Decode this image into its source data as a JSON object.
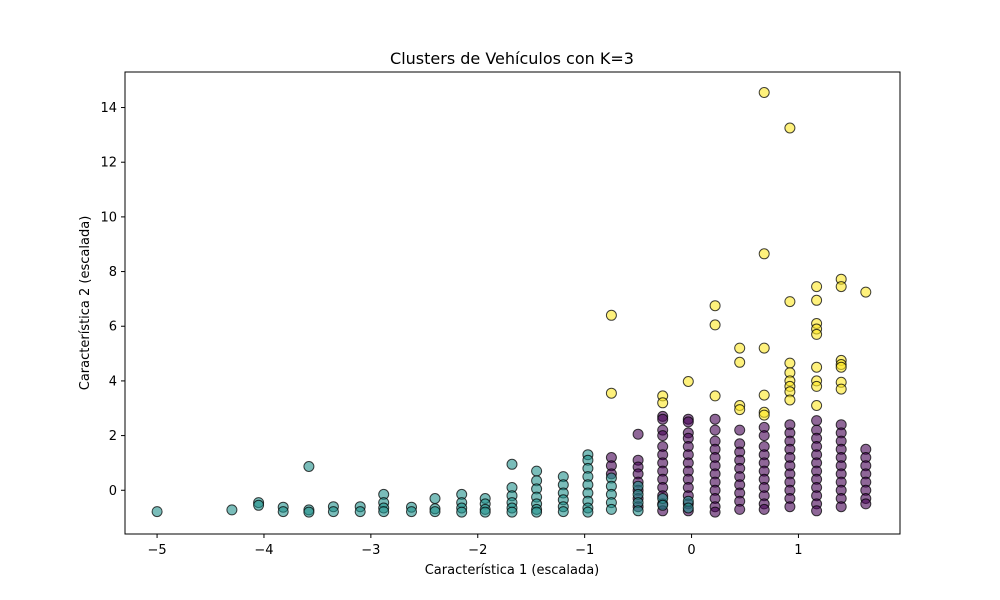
{
  "chart_data": {
    "type": "scatter",
    "title": "Clusters de Vehículos con K=3",
    "xlabel": "Característica 1 (escalada)",
    "ylabel": "Característica 2 (escalada)",
    "xlim": [
      -5.3,
      1.95
    ],
    "ylim": [
      -1.6,
      15.3
    ],
    "xticks": [
      -5,
      -4,
      -3,
      -2,
      -1,
      0,
      1
    ],
    "yticks": [
      0,
      2,
      4,
      6,
      8,
      10,
      12,
      14
    ],
    "xtick_labels": [
      "−5",
      "−4",
      "−3",
      "−2",
      "−1",
      "0",
      "1"
    ],
    "ytick_labels": [
      "0",
      "2",
      "4",
      "6",
      "8",
      "10",
      "12",
      "14"
    ],
    "grid": false,
    "legend": "none",
    "marker_edge_color": "#000000",
    "marker_alpha": 0.6,
    "series": [
      {
        "color": "#440154",
        "points": [
          [
            -0.75,
            1.2
          ],
          [
            -0.75,
            0.9
          ],
          [
            -0.75,
            0.6
          ],
          [
            -0.5,
            2.05
          ],
          [
            -0.5,
            1.1
          ],
          [
            -0.5,
            0.85
          ],
          [
            -0.5,
            0.6
          ],
          [
            -0.5,
            0.3
          ],
          [
            -0.5,
            0.0
          ],
          [
            -0.5,
            -0.3
          ],
          [
            -0.5,
            -0.6
          ],
          [
            -0.27,
            2.7
          ],
          [
            -0.27,
            2.6
          ],
          [
            -0.27,
            2.2
          ],
          [
            -0.27,
            2.0
          ],
          [
            -0.27,
            1.6
          ],
          [
            -0.27,
            1.3
          ],
          [
            -0.27,
            1.0
          ],
          [
            -0.27,
            0.7
          ],
          [
            -0.27,
            0.4
          ],
          [
            -0.27,
            0.1
          ],
          [
            -0.27,
            -0.2
          ],
          [
            -0.27,
            -0.5
          ],
          [
            -0.27,
            -0.75
          ],
          [
            -0.03,
            2.6
          ],
          [
            -0.03,
            2.5
          ],
          [
            -0.03,
            2.1
          ],
          [
            -0.03,
            1.9
          ],
          [
            -0.03,
            1.6
          ],
          [
            -0.03,
            1.3
          ],
          [
            -0.03,
            1.0
          ],
          [
            -0.03,
            0.7
          ],
          [
            -0.03,
            0.4
          ],
          [
            -0.03,
            0.1
          ],
          [
            -0.03,
            -0.2
          ],
          [
            -0.03,
            -0.5
          ],
          [
            -0.03,
            -0.75
          ],
          [
            0.22,
            2.6
          ],
          [
            0.22,
            2.2
          ],
          [
            0.22,
            1.8
          ],
          [
            0.22,
            1.5
          ],
          [
            0.22,
            1.2
          ],
          [
            0.22,
            0.9
          ],
          [
            0.22,
            0.6
          ],
          [
            0.22,
            0.3
          ],
          [
            0.22,
            0.0
          ],
          [
            0.22,
            -0.3
          ],
          [
            0.22,
            -0.6
          ],
          [
            0.22,
            -0.8
          ],
          [
            0.45,
            2.2
          ],
          [
            0.45,
            1.7
          ],
          [
            0.45,
            1.4
          ],
          [
            0.45,
            1.1
          ],
          [
            0.45,
            0.8
          ],
          [
            0.45,
            0.5
          ],
          [
            0.45,
            0.2
          ],
          [
            0.45,
            -0.1
          ],
          [
            0.45,
            -0.4
          ],
          [
            0.45,
            -0.7
          ],
          [
            0.68,
            2.3
          ],
          [
            0.68,
            2.0
          ],
          [
            0.68,
            1.6
          ],
          [
            0.68,
            1.3
          ],
          [
            0.68,
            1.0
          ],
          [
            0.68,
            0.7
          ],
          [
            0.68,
            0.4
          ],
          [
            0.68,
            0.1
          ],
          [
            0.68,
            -0.2
          ],
          [
            0.68,
            -0.5
          ],
          [
            0.68,
            -0.7
          ],
          [
            0.92,
            2.4
          ],
          [
            0.92,
            2.1
          ],
          [
            0.92,
            1.8
          ],
          [
            0.92,
            1.5
          ],
          [
            0.92,
            1.2
          ],
          [
            0.92,
            0.9
          ],
          [
            0.92,
            0.6
          ],
          [
            0.92,
            0.3
          ],
          [
            0.92,
            0.0
          ],
          [
            0.92,
            -0.3
          ],
          [
            0.92,
            -0.6
          ],
          [
            1.17,
            2.55
          ],
          [
            1.17,
            2.2
          ],
          [
            1.17,
            1.9
          ],
          [
            1.17,
            1.6
          ],
          [
            1.17,
            1.3
          ],
          [
            1.17,
            1.0
          ],
          [
            1.17,
            0.7
          ],
          [
            1.17,
            0.4
          ],
          [
            1.17,
            0.1
          ],
          [
            1.17,
            -0.2
          ],
          [
            1.17,
            -0.5
          ],
          [
            1.17,
            -0.75
          ],
          [
            1.4,
            2.4
          ],
          [
            1.4,
            2.1
          ],
          [
            1.4,
            1.8
          ],
          [
            1.4,
            1.5
          ],
          [
            1.4,
            1.2
          ],
          [
            1.4,
            0.9
          ],
          [
            1.4,
            0.6
          ],
          [
            1.4,
            0.3
          ],
          [
            1.4,
            0.0
          ],
          [
            1.4,
            -0.3
          ],
          [
            1.4,
            -0.6
          ],
          [
            1.63,
            1.5
          ],
          [
            1.63,
            1.2
          ],
          [
            1.63,
            0.9
          ],
          [
            1.63,
            0.6
          ],
          [
            1.63,
            0.3
          ],
          [
            1.63,
            0.0
          ],
          [
            1.63,
            -0.3
          ],
          [
            1.63,
            -0.5
          ]
        ]
      },
      {
        "color": "#21918c",
        "points": [
          [
            -5.0,
            -0.78
          ],
          [
            -4.3,
            -0.72
          ],
          [
            -4.05,
            -0.45
          ],
          [
            -4.05,
            -0.55
          ],
          [
            -3.82,
            -0.62
          ],
          [
            -3.82,
            -0.78
          ],
          [
            -3.58,
            0.87
          ],
          [
            -3.58,
            -0.72
          ],
          [
            -3.58,
            -0.8
          ],
          [
            -3.35,
            -0.6
          ],
          [
            -3.35,
            -0.78
          ],
          [
            -3.1,
            -0.6
          ],
          [
            -3.1,
            -0.78
          ],
          [
            -2.88,
            -0.15
          ],
          [
            -2.88,
            -0.45
          ],
          [
            -2.88,
            -0.65
          ],
          [
            -2.88,
            -0.78
          ],
          [
            -2.62,
            -0.62
          ],
          [
            -2.62,
            -0.78
          ],
          [
            -2.4,
            -0.3
          ],
          [
            -2.4,
            -0.68
          ],
          [
            -2.4,
            -0.78
          ],
          [
            -2.15,
            -0.15
          ],
          [
            -2.15,
            -0.45
          ],
          [
            -2.15,
            -0.65
          ],
          [
            -2.15,
            -0.8
          ],
          [
            -1.93,
            -0.3
          ],
          [
            -1.93,
            -0.5
          ],
          [
            -1.93,
            -0.7
          ],
          [
            -1.93,
            -0.8
          ],
          [
            -1.68,
            0.95
          ],
          [
            -1.68,
            0.1
          ],
          [
            -1.68,
            -0.2
          ],
          [
            -1.68,
            -0.45
          ],
          [
            -1.68,
            -0.65
          ],
          [
            -1.68,
            -0.8
          ],
          [
            -1.45,
            0.7
          ],
          [
            -1.45,
            0.35
          ],
          [
            -1.45,
            0.05
          ],
          [
            -1.45,
            -0.25
          ],
          [
            -1.45,
            -0.5
          ],
          [
            -1.45,
            -0.7
          ],
          [
            -1.45,
            -0.8
          ],
          [
            -1.2,
            0.5
          ],
          [
            -1.2,
            0.2
          ],
          [
            -1.2,
            -0.1
          ],
          [
            -1.2,
            -0.35
          ],
          [
            -1.2,
            -0.6
          ],
          [
            -1.2,
            -0.78
          ],
          [
            -0.97,
            1.3
          ],
          [
            -0.97,
            1.1
          ],
          [
            -0.97,
            0.8
          ],
          [
            -0.97,
            0.5
          ],
          [
            -0.97,
            0.2
          ],
          [
            -0.97,
            -0.1
          ],
          [
            -0.97,
            -0.4
          ],
          [
            -0.97,
            -0.65
          ],
          [
            -0.97,
            -0.8
          ],
          [
            -0.75,
            0.45
          ],
          [
            -0.75,
            0.15
          ],
          [
            -0.75,
            -0.15
          ],
          [
            -0.75,
            -0.45
          ],
          [
            -0.75,
            -0.7
          ],
          [
            -0.5,
            0.15
          ],
          [
            -0.5,
            -0.15
          ],
          [
            -0.5,
            -0.45
          ],
          [
            -0.5,
            -0.75
          ],
          [
            -0.27,
            -0.3
          ],
          [
            -0.27,
            -0.55
          ],
          [
            -0.03,
            -0.4
          ],
          [
            -0.03,
            -0.65
          ]
        ]
      },
      {
        "color": "#fde725",
        "points": [
          [
            -0.75,
            6.4
          ],
          [
            -0.75,
            3.55
          ],
          [
            -0.27,
            3.45
          ],
          [
            -0.27,
            3.2
          ],
          [
            -0.03,
            3.98
          ],
          [
            0.22,
            6.75
          ],
          [
            0.22,
            6.05
          ],
          [
            0.22,
            3.45
          ],
          [
            0.45,
            5.2
          ],
          [
            0.45,
            4.68
          ],
          [
            0.45,
            3.1
          ],
          [
            0.45,
            2.95
          ],
          [
            0.68,
            14.55
          ],
          [
            0.68,
            8.65
          ],
          [
            0.68,
            5.2
          ],
          [
            0.68,
            3.48
          ],
          [
            0.68,
            2.85
          ],
          [
            0.68,
            2.75
          ],
          [
            0.92,
            13.25
          ],
          [
            0.92,
            6.9
          ],
          [
            0.92,
            4.65
          ],
          [
            0.92,
            4.3
          ],
          [
            0.92,
            4.0
          ],
          [
            0.92,
            3.8
          ],
          [
            0.92,
            3.6
          ],
          [
            0.92,
            3.3
          ],
          [
            1.17,
            7.45
          ],
          [
            1.17,
            6.95
          ],
          [
            1.17,
            6.1
          ],
          [
            1.17,
            5.9
          ],
          [
            1.17,
            5.7
          ],
          [
            1.17,
            4.5
          ],
          [
            1.17,
            4.0
          ],
          [
            1.17,
            3.8
          ],
          [
            1.17,
            3.1
          ],
          [
            1.4,
            7.72
          ],
          [
            1.4,
            7.45
          ],
          [
            1.4,
            4.75
          ],
          [
            1.4,
            4.6
          ],
          [
            1.4,
            4.5
          ],
          [
            1.4,
            3.95
          ],
          [
            1.4,
            3.7
          ],
          [
            1.63,
            7.25
          ]
        ]
      }
    ]
  }
}
